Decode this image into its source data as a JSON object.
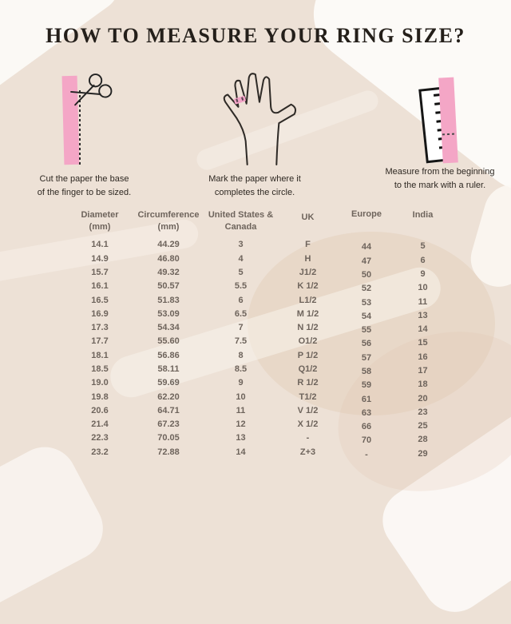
{
  "title": "HOW TO MEASURE YOUR RING SIZE?",
  "steps": [
    {
      "icon": "scissors-icon",
      "caption_line1": "Cut the paper the base",
      "caption_line2": "of the finger to be sized."
    },
    {
      "icon": "hand-icon",
      "caption_line1": "Mark the paper where it",
      "caption_line2": "completes the circle."
    },
    {
      "icon": "ruler-icon",
      "caption_line1": "Measure from the beginning",
      "caption_line2": "to the mark with a ruler."
    }
  ],
  "table": {
    "headers": [
      {
        "line1": "Diameter",
        "line2": "(mm)"
      },
      {
        "line1": "Circumference",
        "line2": "(mm)"
      },
      {
        "line1": "United States &",
        "line2": "Canada"
      },
      {
        "line1": "UK",
        "line2": ""
      },
      {
        "line1": "Europe",
        "line2": ""
      },
      {
        "line1": "India",
        "line2": ""
      }
    ],
    "rows": [
      [
        "14.1",
        "44.29",
        "3",
        "F",
        "44",
        "5"
      ],
      [
        "14.9",
        "46.80",
        "4",
        "H",
        "47",
        "6"
      ],
      [
        "15.7",
        "49.32",
        "5",
        "J1/2",
        "50",
        "9"
      ],
      [
        "16.1",
        "50.57",
        "5.5",
        "K 1/2",
        "52",
        "10"
      ],
      [
        "16.5",
        "51.83",
        "6",
        "L1/2",
        "53",
        "11"
      ],
      [
        "16.9",
        "53.09",
        "6.5",
        "M 1/2",
        "54",
        "13"
      ],
      [
        "17.3",
        "54.34",
        "7",
        "N 1/2",
        "55",
        "14"
      ],
      [
        "17.7",
        "55.60",
        "7.5",
        "O1/2",
        "56",
        "15"
      ],
      [
        "18.1",
        "56.86",
        "8",
        "P 1/2",
        "57",
        "16"
      ],
      [
        "18.5",
        "58.11",
        "8.5",
        "Q1/2",
        "58",
        "17"
      ],
      [
        "19.0",
        "59.69",
        "9",
        "R 1/2",
        "59",
        "18"
      ],
      [
        "19.8",
        "62.20",
        "10",
        "T1/2",
        "61",
        "20"
      ],
      [
        "20.6",
        "64.71",
        "11",
        "V 1/2",
        "63",
        "23"
      ],
      [
        "21.4",
        "67.23",
        "12",
        "X 1/2",
        "66",
        "25"
      ],
      [
        "22.3",
        "70.05",
        "13",
        "-",
        "70",
        "28"
      ],
      [
        "23.2",
        "72.88",
        "14",
        "Z+3",
        "-",
        "29"
      ]
    ]
  },
  "colors": {
    "background": "#EDE1D6",
    "accent_pink": "#F4A6C6",
    "title_text": "#241F1A",
    "table_text": "#6E645C"
  }
}
